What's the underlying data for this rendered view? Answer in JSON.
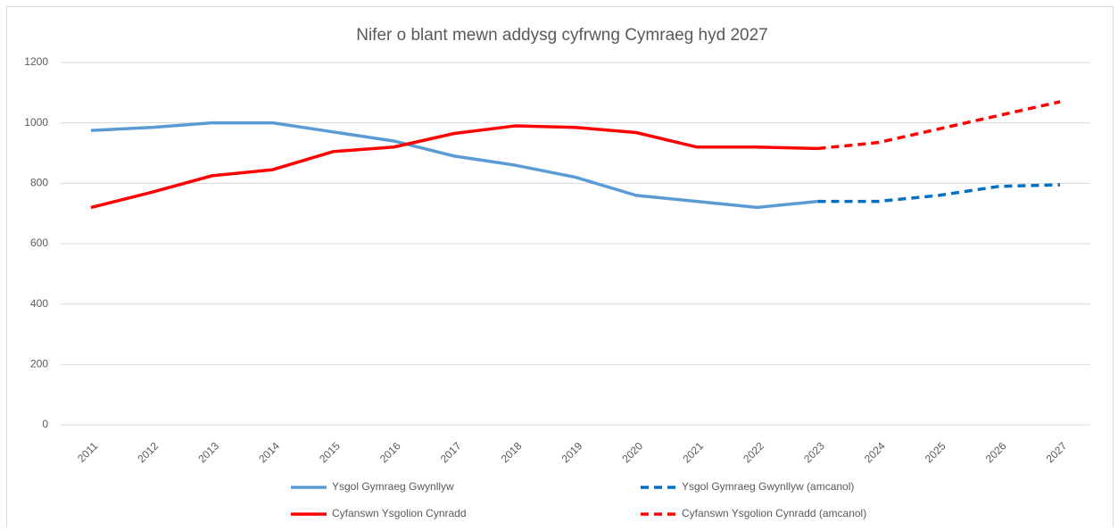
{
  "chart_data": {
    "type": "line",
    "title": "Nifer o blant mewn addysg cyfrwng Cymraeg hyd 2027",
    "categories": [
      "2011",
      "2012",
      "2013",
      "2014",
      "2015",
      "2016",
      "2017",
      "2018",
      "2019",
      "2020",
      "2021",
      "2022",
      "2023",
      "2024",
      "2025",
      "2026",
      "2027"
    ],
    "series": [
      {
        "name": "Ysgol Gymraeg Gwynllyw",
        "color": "#5b9bd5",
        "style": "solid",
        "values": [
          975,
          985,
          1000,
          1000,
          970,
          940,
          890,
          860,
          820,
          760,
          740,
          720,
          740,
          null,
          null,
          null,
          null
        ]
      },
      {
        "name": "Ysgol Gymraeg Gwynllyw (amcanol)",
        "color": "#0070c0",
        "style": "dashed",
        "values": [
          null,
          null,
          null,
          null,
          null,
          null,
          null,
          null,
          null,
          null,
          null,
          null,
          740,
          740,
          760,
          790,
          795
        ]
      },
      {
        "name": "Cyfanswn Ysgolion Cynradd",
        "color": "#ff0000",
        "style": "solid",
        "values": [
          720,
          770,
          825,
          845,
          905,
          920,
          965,
          990,
          985,
          968,
          920,
          920,
          915,
          null,
          null,
          null,
          null
        ]
      },
      {
        "name": "Cyfanswn Ysgolion Cynradd (amcanol)",
        "color": "#ff0000",
        "style": "dashed",
        "values": [
          null,
          null,
          null,
          null,
          null,
          null,
          null,
          null,
          null,
          null,
          null,
          null,
          915,
          935,
          980,
          1025,
          1070
        ]
      }
    ],
    "ylim": [
      0,
      1200
    ],
    "yticks": [
      0,
      200,
      400,
      600,
      800,
      1000,
      1200
    ],
    "grid": true,
    "legend": "bottom"
  }
}
